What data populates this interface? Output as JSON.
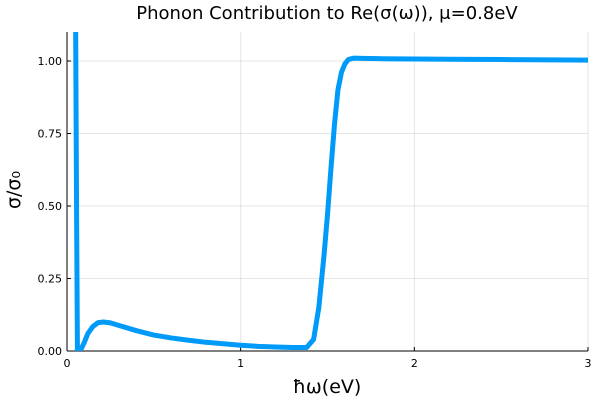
{
  "chart_data": {
    "type": "line",
    "title": "Phonon Contribution to Re(σ(ω)), μ=0.8eV",
    "xlabel": "ħω(eV)",
    "ylabel": "σ/σ₀",
    "xlim": [
      0,
      3
    ],
    "ylim": [
      0,
      1.1
    ],
    "xticks": [
      0,
      1,
      2,
      3
    ],
    "xtick_labels": [
      "0",
      "1",
      "2",
      "3"
    ],
    "yticks": [
      0.0,
      0.25,
      0.5,
      0.75,
      1.0
    ],
    "ytick_labels": [
      "0.00",
      "0.25",
      "0.50",
      "0.75",
      "1.00"
    ],
    "grid": true,
    "legend": "none",
    "series": [
      {
        "color": "#009af9",
        "x": [
          0.05,
          0.055,
          0.06,
          0.07,
          0.08,
          0.1,
          0.12,
          0.15,
          0.18,
          0.21,
          0.25,
          0.3,
          0.4,
          0.5,
          0.6,
          0.7,
          0.8,
          0.9,
          1.0,
          1.1,
          1.2,
          1.3,
          1.38,
          1.42,
          1.45,
          1.48,
          1.5,
          1.52,
          1.54,
          1.56,
          1.58,
          1.6,
          1.62,
          1.65,
          1.7,
          1.8,
          2.0,
          2.2,
          2.5,
          2.8,
          3.0
        ],
        "y": [
          1.1,
          0.5,
          0.0,
          0.0,
          0.005,
          0.03,
          0.06,
          0.085,
          0.098,
          0.1,
          0.097,
          0.088,
          0.07,
          0.055,
          0.045,
          0.037,
          0.03,
          0.025,
          0.02,
          0.016,
          0.014,
          0.012,
          0.012,
          0.04,
          0.15,
          0.33,
          0.47,
          0.63,
          0.78,
          0.9,
          0.96,
          0.99,
          1.005,
          1.01,
          1.009,
          1.008,
          1.007,
          1.006,
          1.005,
          1.004,
          1.003
        ]
      }
    ]
  }
}
